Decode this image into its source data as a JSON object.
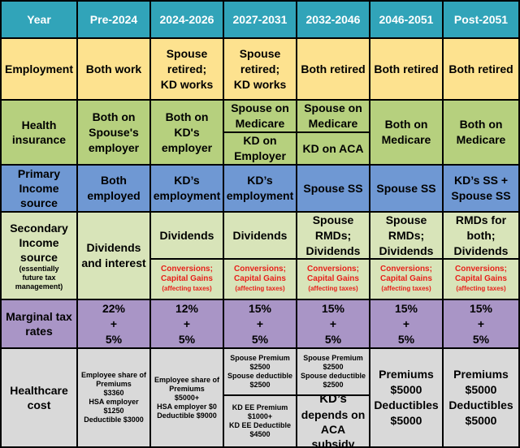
{
  "header": {
    "year": "Year",
    "cols": [
      "Pre-2024",
      "2024-2026",
      "2027-2031",
      "2032-2046",
      "2046-2051",
      "Post-2051"
    ]
  },
  "employment": {
    "label": "Employment",
    "pre2024": "Both work",
    "c2024": [
      "Spouse",
      "retired;",
      "KD works"
    ],
    "c2027": [
      "Spouse",
      "retired;",
      "KD works"
    ],
    "c2032": "Both retired",
    "c2046": "Both retired",
    "post2051": "Both retired"
  },
  "health_insurance": {
    "label": [
      "Health",
      "insurance"
    ],
    "pre2024": [
      "Both on",
      "Spouse's",
      "employer"
    ],
    "c2024": [
      "Both on KD's",
      "employer"
    ],
    "c2027_top": [
      "Spouse on",
      "Medicare"
    ],
    "c2027_bottom": [
      "KD on",
      "Employer"
    ],
    "c2032_top": [
      "Spouse on",
      "Medicare"
    ],
    "c2032_bottom": "KD on ACA",
    "c2046": [
      "Both on",
      "Medicare"
    ],
    "post2051": [
      "Both on",
      "Medicare"
    ]
  },
  "primary_income": {
    "label": [
      "Primary",
      "Income",
      "source"
    ],
    "pre2024": [
      "Both",
      "employed"
    ],
    "c2024": [
      "KD’s",
      "employment"
    ],
    "c2027": [
      "KD’s",
      "employment"
    ],
    "c2032": "Spouse SS",
    "c2046": "Spouse SS",
    "post2051": [
      "KD’s SS +",
      "Spouse SS"
    ]
  },
  "secondary_income": {
    "label": [
      "Secondary",
      "Income",
      "source"
    ],
    "label_note": [
      "(essentially",
      "future tax",
      "management)"
    ],
    "pre2024": [
      "Dividends",
      "and interest"
    ],
    "c2024_top": "Dividends",
    "c2027_top": "Dividends",
    "c2032_top": [
      "Spouse",
      "RMDs;",
      "Dividends"
    ],
    "c2046_top": [
      "Spouse",
      "RMDs;",
      "Dividends"
    ],
    "post2051_top": [
      "RMDs for",
      "both;",
      "Dividends"
    ],
    "conversions": [
      "Conversions;",
      "Capital Gains"
    ],
    "conversions_note": "(affecting taxes)"
  },
  "marginal_tax": {
    "label": [
      "Marginal tax",
      "rates"
    ],
    "pre2024": [
      "22%",
      "+",
      "5%"
    ],
    "c2024": [
      "12%",
      "+",
      "5%"
    ],
    "c2027": [
      "15%",
      "+",
      "5%"
    ],
    "c2032": [
      "15%",
      "+",
      "5%"
    ],
    "c2046": [
      "15%",
      "+",
      "5%"
    ],
    "post2051": [
      "15%",
      "+",
      "5%"
    ]
  },
  "healthcare_cost": {
    "label": [
      "Healthcare",
      "cost"
    ],
    "pre2024": [
      "Employee share of",
      "Premiums",
      "$3360",
      "HSA employer $1250",
      "Deductible $3000"
    ],
    "c2024": [
      "Employee share of",
      "Premiums",
      "$5000+",
      "HSA employer $0",
      "Deductible $9000"
    ],
    "c2027_top": [
      "Spouse Premium",
      "$2500",
      "Spouse deductible",
      "$2500"
    ],
    "c2027_bottom": [
      "KD EE Premium",
      "$1000+",
      "KD EE Deductible",
      "$4500"
    ],
    "c2032_top": [
      "Spouse Premium",
      "$2500",
      "Spouse deductible",
      "$2500"
    ],
    "c2032_bottom": [
      "KD’s",
      "depends on",
      "ACA subsidy"
    ],
    "c2046": [
      "Premiums",
      "$5000",
      "Deductibles",
      "$5000"
    ],
    "post2051": [
      "Premiums",
      "$5000",
      "Deductibles",
      "$5000"
    ]
  },
  "colors": {
    "header": "#31a4b9",
    "employment": "#fde28f",
    "health_insurance": "#b6d07e",
    "primary_income": "#6f98d3",
    "secondary_income": "#d8e4b9",
    "marginal_tax": "#a995c6",
    "healthcare_cost": "#d9d9d9",
    "conversions_text": "#e8201a"
  }
}
